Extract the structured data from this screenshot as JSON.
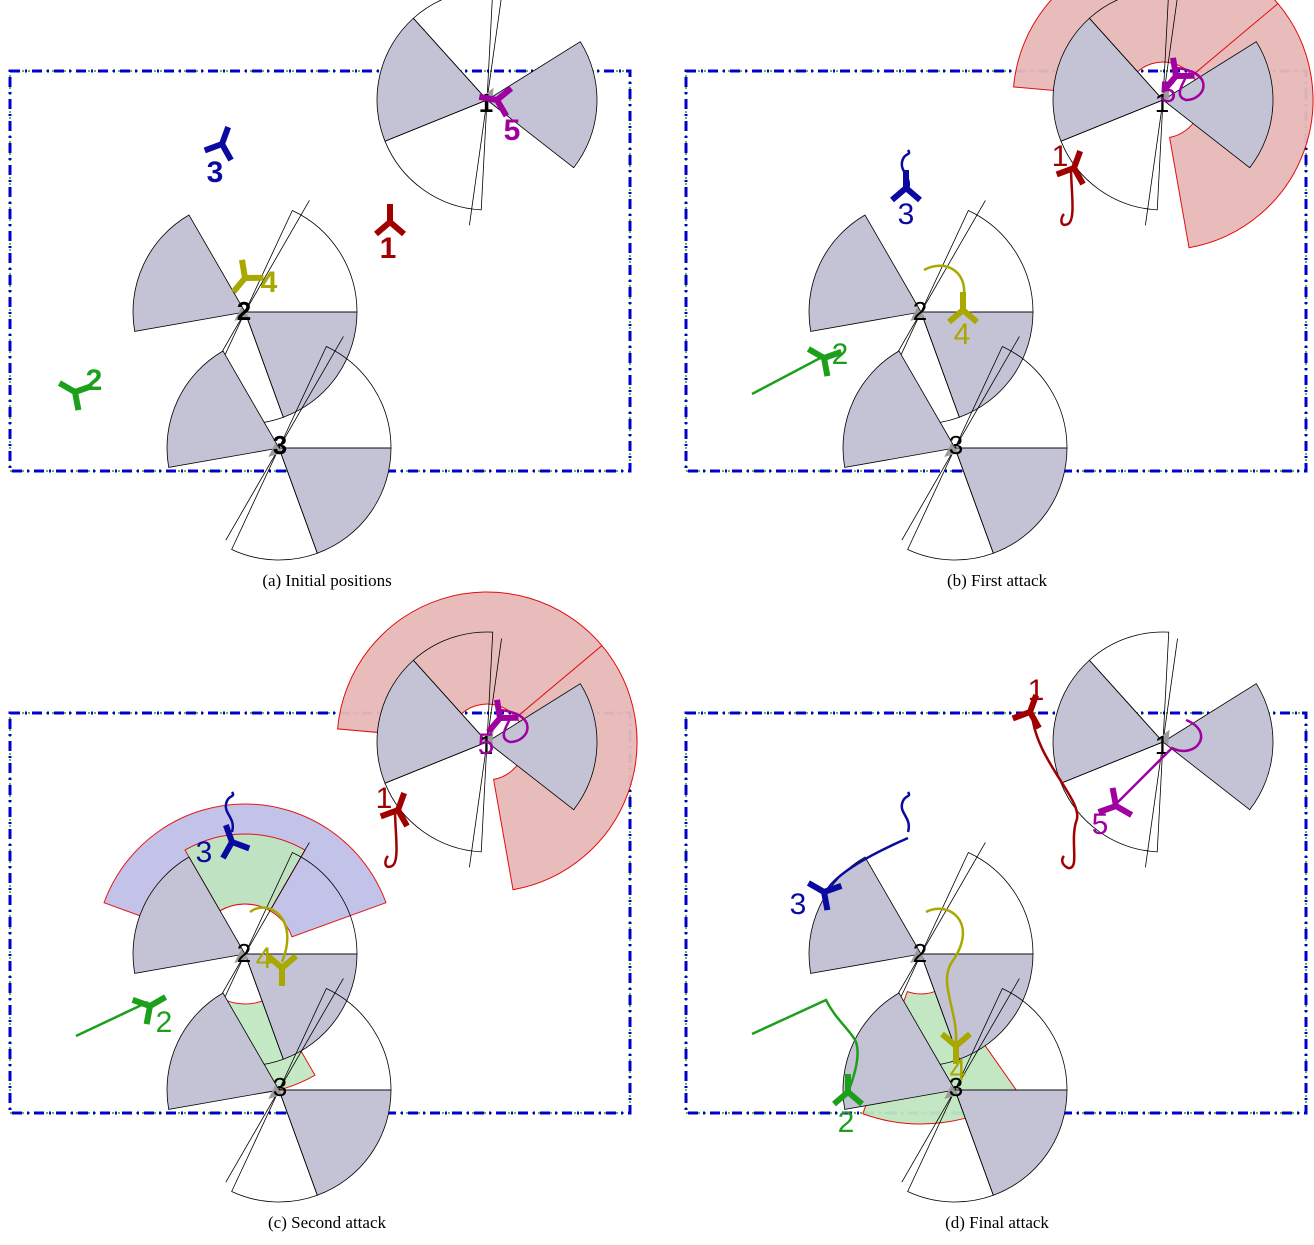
{
  "colors": {
    "boundary": "#0000cc",
    "boundary_dash": "#2a9a2a",
    "sector_fill": "#c3c3d5",
    "zone_red": "#e8b9b9",
    "zone_green": "#bfe6bf",
    "zone_blue": "#bdbde8",
    "zone_edge": "#e00000",
    "defender": "#9a9a9a",
    "unit_1": "#a00000",
    "unit_2": "#1ca01c",
    "unit_3": "#0a0aa0",
    "unit_4": "#a8a800",
    "unit_5": "#a000a0"
  },
  "panels": [
    {
      "id": "a",
      "caption": "(a) Initial positions",
      "defenders": [
        {
          "label": "1"
        },
        {
          "label": "2"
        },
        {
          "label": "3"
        }
      ],
      "units": [
        {
          "label": "1",
          "color_key": "unit_1"
        },
        {
          "label": "2",
          "color_key": "unit_2"
        },
        {
          "label": "3",
          "color_key": "unit_3"
        },
        {
          "label": "4",
          "color_key": "unit_4"
        },
        {
          "label": "5",
          "color_key": "unit_5"
        }
      ]
    },
    {
      "id": "b",
      "caption": "(b) First attack",
      "defenders": [
        {
          "label": "1"
        },
        {
          "label": "2"
        },
        {
          "label": "3"
        }
      ],
      "units": [
        {
          "label": "1",
          "color_key": "unit_1"
        },
        {
          "label": "2",
          "color_key": "unit_2"
        },
        {
          "label": "3",
          "color_key": "unit_3"
        },
        {
          "label": "4",
          "color_key": "unit_4"
        },
        {
          "label": "5",
          "color_key": "unit_5"
        }
      ]
    },
    {
      "id": "c",
      "caption": "(c) Second attack",
      "defenders": [
        {
          "label": "1"
        },
        {
          "label": "2"
        },
        {
          "label": "3"
        }
      ],
      "units": [
        {
          "label": "1",
          "color_key": "unit_1"
        },
        {
          "label": "2",
          "color_key": "unit_2"
        },
        {
          "label": "3",
          "color_key": "unit_3"
        },
        {
          "label": "4",
          "color_key": "unit_4"
        },
        {
          "label": "5",
          "color_key": "unit_5"
        }
      ]
    },
    {
      "id": "d",
      "caption": "(d) Final attack",
      "defenders": [
        {
          "label": "1"
        },
        {
          "label": "2"
        },
        {
          "label": "3"
        }
      ],
      "units": [
        {
          "label": "1",
          "color_key": "unit_1"
        },
        {
          "label": "2",
          "color_key": "unit_2"
        },
        {
          "label": "3",
          "color_key": "unit_3"
        },
        {
          "label": "4",
          "color_key": "unit_4"
        },
        {
          "label": "5",
          "color_key": "unit_5"
        }
      ]
    }
  ]
}
